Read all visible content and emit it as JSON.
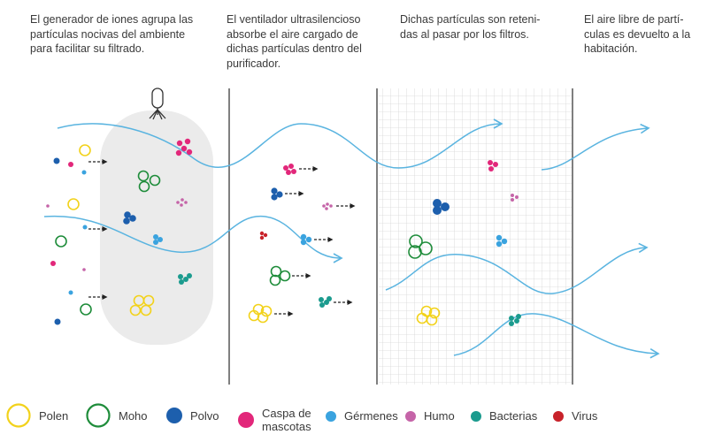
{
  "captions": [
    {
      "lines": [
        "El generador de iones agrupa las",
        "partículas nocivas del ambiente",
        "para facilitar su filtrado."
      ]
    },
    {
      "lines": [
        "El ventilador ultrasilencioso",
        "absorbe el aire cargado de",
        "dichas partículas dentro del",
        "purificador."
      ]
    },
    {
      "lines": [
        "Dichas partículas son reteni-",
        "das al pasar por los filtros."
      ]
    },
    {
      "lines": [
        "El aire libre de partí-",
        "culas es devuelto a la",
        "habitación."
      ]
    }
  ],
  "legend": [
    {
      "label_lines": [
        "Polen"
      ],
      "icon": "pollen-ring-icon",
      "color": "#f2d21b"
    },
    {
      "label_lines": [
        "Moho"
      ],
      "icon": "mold-ring-icon",
      "color": "#1e8c3a"
    },
    {
      "label_lines": [
        "Polvo"
      ],
      "icon": "dust-dot-icon",
      "color": "#1d5fad"
    },
    {
      "label_lines": [
        "Caspa de",
        "mascotas"
      ],
      "icon": "pet-dander-dot-icon",
      "color": "#e2277a"
    },
    {
      "label_lines": [
        "Gérmenes"
      ],
      "icon": "germ-dot-icon",
      "color": "#3aa3df"
    },
    {
      "label_lines": [
        "Humo"
      ],
      "icon": "smoke-dot-icon",
      "color": "#c564a8"
    },
    {
      "label_lines": [
        "Bacterias"
      ],
      "icon": "bacteria-dot-icon",
      "color": "#1b9b8e"
    },
    {
      "label_lines": [
        "Virus"
      ],
      "icon": "virus-dot-icon",
      "color": "#c8222a"
    }
  ],
  "colors": {
    "airflow": "#5ab4e0",
    "divider": "#555555",
    "ionizer_body": "#ebebeb",
    "filter_grid": "#d6d6d6",
    "text": "#3a3a3a"
  }
}
